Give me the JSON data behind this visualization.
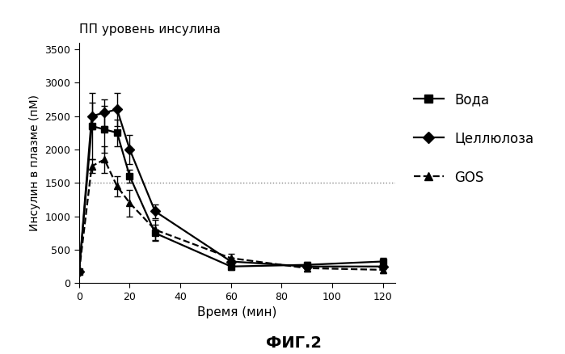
{
  "title": "ПП уровень инсулина",
  "xlabel": "Время (мин)",
  "ylabel": "Инсулин в плазме (пМ)",
  "fig_label": "ФИГ.2",
  "xlim": [
    0,
    125
  ],
  "ylim": [
    0,
    3600
  ],
  "yticks": [
    0,
    500,
    1000,
    1500,
    2000,
    2500,
    3000,
    3500
  ],
  "xticks": [
    0,
    20,
    40,
    60,
    80,
    100,
    120
  ],
  "hline_y": 1500,
  "water": {
    "label": "Вода",
    "x": [
      0,
      5,
      10,
      15,
      20,
      30,
      60,
      90,
      120
    ],
    "y": [
      175,
      2350,
      2300,
      2250,
      1600,
      750,
      250,
      275,
      325
    ],
    "yerr": [
      0,
      500,
      350,
      200,
      100,
      120,
      50,
      50,
      60
    ],
    "color": "#000000",
    "linestyle": "-",
    "marker": "s",
    "markersize": 6
  },
  "cellulose": {
    "label": "Целлюлоза",
    "x": [
      0,
      5,
      10,
      15,
      20,
      30,
      60,
      90,
      120
    ],
    "y": [
      175,
      2500,
      2550,
      2600,
      2000,
      1075,
      325,
      250,
      250
    ],
    "yerr": [
      0,
      200,
      200,
      250,
      220,
      100,
      60,
      40,
      40
    ],
    "color": "#000000",
    "linestyle": "-",
    "marker": "D",
    "markersize": 6
  },
  "gos": {
    "label": "GOS",
    "x": [
      0,
      5,
      10,
      15,
      20,
      30,
      60,
      90,
      120
    ],
    "y": [
      175,
      1750,
      1850,
      1450,
      1200,
      800,
      375,
      225,
      200
    ],
    "yerr": [
      0,
      100,
      200,
      150,
      200,
      150,
      70,
      50,
      50
    ],
    "color": "#000000",
    "linestyle": "--",
    "marker": "^",
    "markersize": 6
  },
  "legend_fontsize": 12,
  "legend_labelspacing": 1.8,
  "title_fontsize": 11,
  "xlabel_fontsize": 11,
  "ylabel_fontsize": 10,
  "tick_labelsize": 9,
  "figlabel_fontsize": 14
}
